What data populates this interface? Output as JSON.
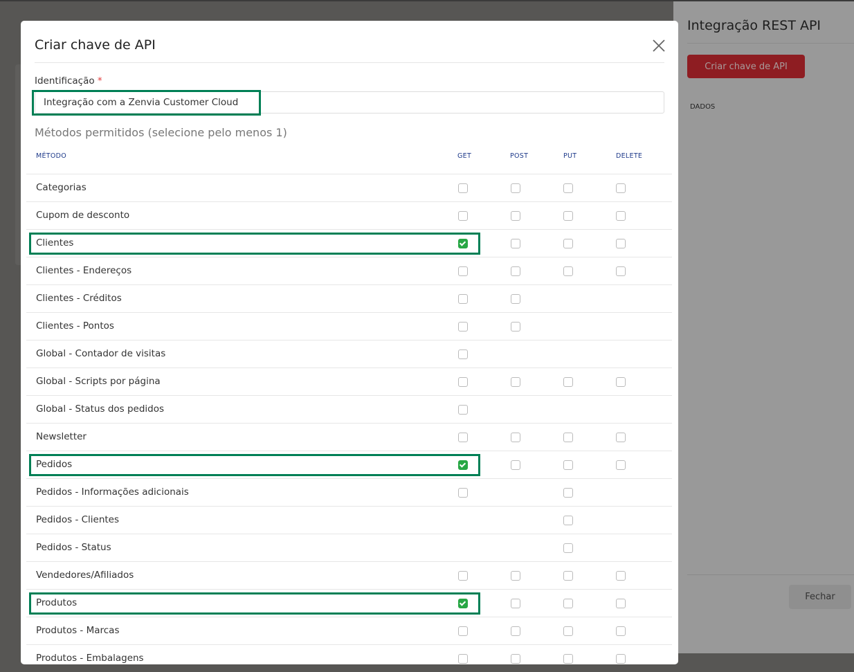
{
  "drawer": {
    "title": "Integração REST API",
    "create_button": "Criar chave de API",
    "section_label": "DADOS",
    "close_button": "Fechar"
  },
  "modal": {
    "title": "Criar chave de API",
    "identification_label": "Identificação",
    "required_mark": "*",
    "identification_value": "Integração com a Zenvia Customer Cloud",
    "methods_subtitle": "Métodos permitidos (selecione pelo menos 1)",
    "columns": [
      "MÉTODO",
      "GET",
      "POST",
      "PUT",
      "DELETE"
    ],
    "rows": [
      {
        "name": "Categorias",
        "methods": [
          false,
          false,
          false,
          false
        ]
      },
      {
        "name": "Cupom de desconto",
        "methods": [
          false,
          false,
          false,
          false
        ]
      },
      {
        "name": "Clientes",
        "methods": [
          true,
          false,
          false,
          false
        ],
        "highlight": true
      },
      {
        "name": "Clientes - Endereços",
        "methods": [
          false,
          false,
          false,
          false
        ]
      },
      {
        "name": "Clientes - Créditos",
        "methods": [
          false,
          false,
          null,
          null
        ]
      },
      {
        "name": "Clientes - Pontos",
        "methods": [
          false,
          false,
          null,
          null
        ]
      },
      {
        "name": "Global - Contador de visitas",
        "methods": [
          false,
          null,
          null,
          null
        ]
      },
      {
        "name": "Global - Scripts por página",
        "methods": [
          false,
          false,
          false,
          false
        ]
      },
      {
        "name": "Global - Status dos pedidos",
        "methods": [
          false,
          null,
          null,
          null
        ]
      },
      {
        "name": "Newsletter",
        "methods": [
          false,
          false,
          false,
          false
        ]
      },
      {
        "name": "Pedidos",
        "methods": [
          true,
          false,
          false,
          false
        ],
        "highlight": true
      },
      {
        "name": "Pedidos - Informações adicionais",
        "methods": [
          false,
          null,
          false,
          null
        ]
      },
      {
        "name": "Pedidos - Clientes",
        "methods": [
          null,
          null,
          false,
          null
        ]
      },
      {
        "name": "Pedidos - Status",
        "methods": [
          null,
          null,
          false,
          null
        ]
      },
      {
        "name": "Vendedores/Afiliados",
        "methods": [
          false,
          false,
          false,
          false
        ]
      },
      {
        "name": "Produtos",
        "methods": [
          true,
          false,
          false,
          false
        ],
        "highlight": true
      },
      {
        "name": "Produtos - Marcas",
        "methods": [
          false,
          false,
          false,
          false
        ]
      },
      {
        "name": "Produtos - Embalagens",
        "methods": [
          false,
          false,
          false,
          false
        ]
      }
    ]
  },
  "colors": {
    "highlight": "#007f55",
    "checked": "#28a745",
    "brand_button": "#8e1d22"
  }
}
